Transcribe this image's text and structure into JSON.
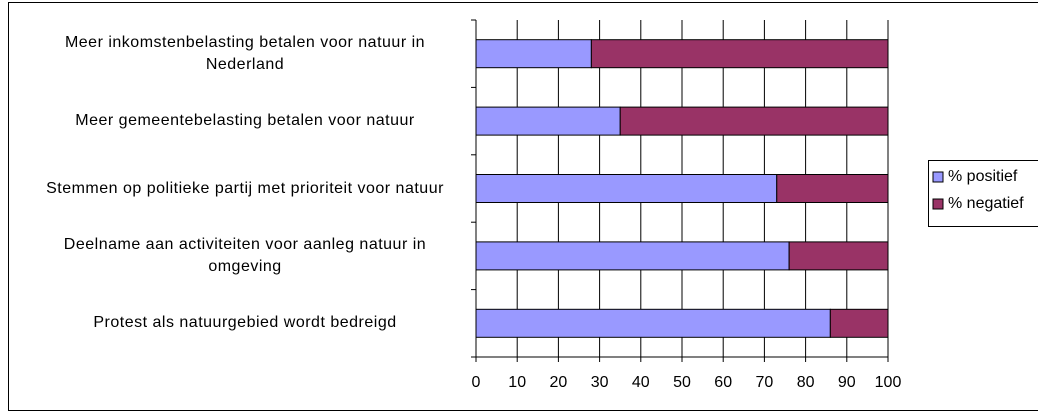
{
  "chart_data": {
    "type": "stacked-barh",
    "categories": [
      "Meer inkomstenbelasting betalen voor natuur in Nederland",
      "Meer gemeentebelasting betalen voor natuur",
      "Stemmen op politieke partij met prioriteit voor natuur",
      "Deelname aan activiteiten voor aanleg natuur in omgeving",
      "Protest als natuurgebied wordt bedreigd"
    ],
    "series": [
      {
        "name": "% positief",
        "color": "#9999ff",
        "values": [
          28,
          35,
          73,
          76,
          86
        ]
      },
      {
        "name": "% negatief",
        "color": "#993366",
        "values": [
          72,
          65,
          27,
          24,
          14
        ]
      }
    ],
    "xlim": [
      0,
      100
    ],
    "xticks": [
      0,
      10,
      20,
      30,
      40,
      50,
      60,
      70,
      80,
      90,
      100
    ],
    "grid": true,
    "legend": "right"
  }
}
